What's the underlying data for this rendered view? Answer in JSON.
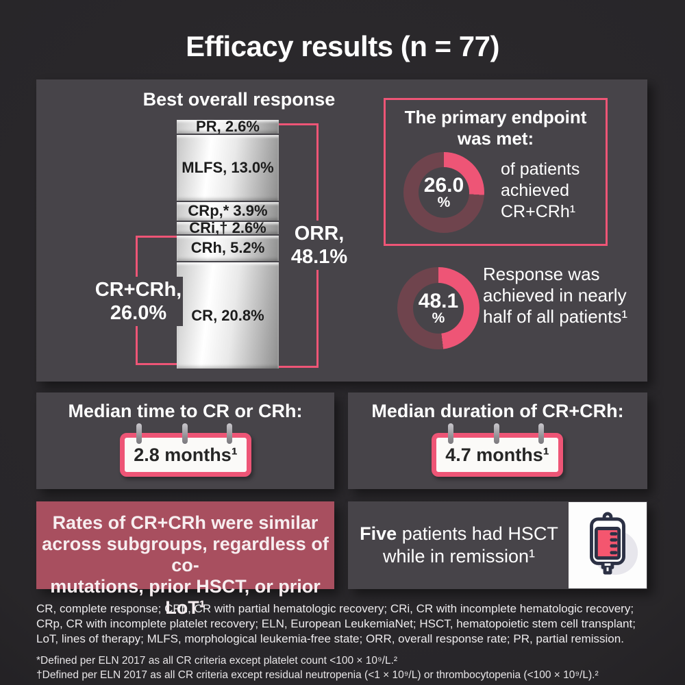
{
  "title": "Efficacy results (n = 77)",
  "colors": {
    "accent": "#ee5576",
    "panel": "#474449",
    "red_box": "#a84f5f",
    "donut_rest": "#6f444d",
    "page_bg": "#282629"
  },
  "chart_data": [
    {
      "type": "bar",
      "variant": "stacked-single-column",
      "title": "Best overall response",
      "categories": [
        "PR",
        "MLFS",
        "CRp",
        "CRi",
        "CRh",
        "CR"
      ],
      "values": [
        2.6,
        13.0,
        3.9,
        2.6,
        5.2,
        20.8
      ],
      "unit": "%",
      "axis": "none",
      "annotations": [
        {
          "label": "ORR",
          "value": 48.1,
          "covers": [
            "PR",
            "MLFS",
            "CRp",
            "CRi",
            "CRh",
            "CR"
          ]
        },
        {
          "label": "CR+CRh",
          "value": 26.0,
          "covers": [
            "CRh",
            "CR"
          ]
        }
      ]
    },
    {
      "type": "pie",
      "variant": "donut",
      "labels": [
        "CR+CRh",
        "remainder"
      ],
      "values": [
        26.0,
        74.0
      ],
      "center_label": "26.0%",
      "caption": "of patients achieved CR+CRh¹"
    },
    {
      "type": "pie",
      "variant": "donut",
      "labels": [
        "Response",
        "remainder"
      ],
      "values": [
        48.1,
        51.9
      ],
      "center_label": "48.1%",
      "caption": "Response was achieved in nearly half of all patients¹"
    }
  ],
  "best_overall_response": {
    "title": "Best overall response",
    "segments": [
      {
        "label": "PR, 2.6%"
      },
      {
        "label": "MLFS, 13.0%"
      },
      {
        "label": "CRp,* 3.9%"
      },
      {
        "label": "CRi,† 2.6%"
      },
      {
        "label": "CRh, 5.2%"
      },
      {
        "label": "CR, 20.8%"
      }
    ],
    "orr_bracket": {
      "line1": "ORR,",
      "line2": "48.1%"
    },
    "crcrh_bracket": {
      "line1": "CR+CRh,",
      "line2": "26.0%"
    }
  },
  "primary_endpoint": {
    "heading": "The primary endpoint was met:",
    "donut_value": "26.0",
    "donut_pct_sign": "%",
    "side_text": "of patients achieved CR+CRh¹"
  },
  "response_donut": {
    "donut_value": "48.1",
    "donut_pct_sign": "%",
    "side_text": "Response was achieved in nearly half of all patients¹"
  },
  "median_time": {
    "heading": "Median time to CR or CRh:",
    "value": "2.8 months¹"
  },
  "median_duration": {
    "heading": "Median duration of CR+CRh:",
    "value": "4.7 months¹"
  },
  "subgroups_box": {
    "lines": [
      "Rates of CR+CRh were similar",
      "across subgroups, regardless of co-",
      "mutations, prior HSCT, or prior LoT¹"
    ]
  },
  "hsct_box": {
    "bold": "Five",
    "rest": " patients had HSCT while in remission¹"
  },
  "icons": {
    "bottom_right": "iv-bag-icon",
    "median_boxes": "calendar-icon"
  },
  "footnotes": {
    "abbreviations": [
      "CR, complete response; CRh, CR with partial hematologic recovery; CRi, CR with incomplete hematologic recovery;",
      "CRp, CR with incomplete platelet recovery; ELN, European LeukemiaNet; HSCT, hematopoietic stem cell transplant;",
      "LoT, lines of therapy; MLFS, morphological leukemia-free state; ORR, overall response rate; PR, partial remission."
    ],
    "definitions": [
      "*Defined per ELN 2017 as all CR criteria except platelet count <100 × 10⁹/L.²",
      "†Defined per ELN 2017 as all CR criteria except residual neutropenia (<1 × 10⁹/L) or thrombocytopenia (<100 × 10⁹/L).²"
    ]
  }
}
